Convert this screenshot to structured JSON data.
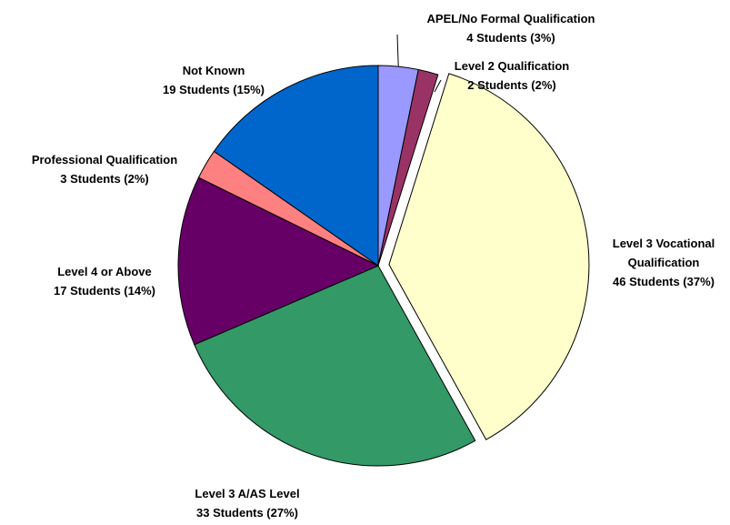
{
  "chart_data": {
    "type": "pie",
    "categories": [
      "APEL/No Formal Qualification",
      "Level 2 Qualification",
      "Level 3 Vocational Qualification",
      "Level 3 A/AS Level",
      "Level 4 or Above",
      "Professional Qualification",
      "Not Known"
    ],
    "values": [
      4,
      2,
      46,
      33,
      17,
      3,
      19
    ],
    "value_labels": [
      "4 Students (3%)",
      "2 Students (2%)",
      "46 Students (37%)",
      "33 Students (27%)",
      "17 Students (14%)",
      "3 Students (2%)",
      "19 Students (15%)"
    ],
    "colors": [
      "#9999ff",
      "#993366",
      "#ffffcc",
      "#339966",
      "#660066",
      "#ff8080",
      "#0066cc"
    ],
    "explode": [
      false,
      false,
      true,
      false,
      false,
      false,
      false
    ]
  }
}
